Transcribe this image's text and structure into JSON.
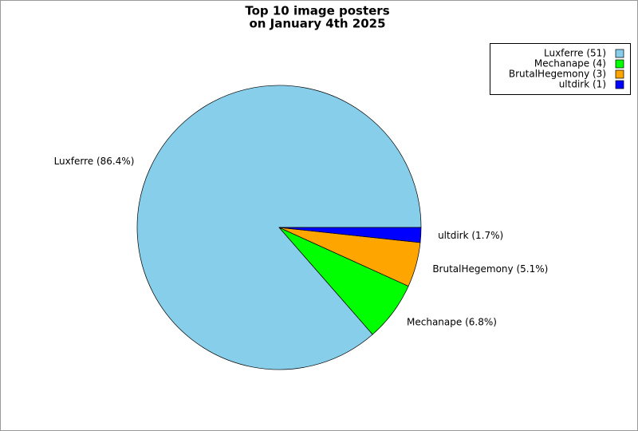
{
  "chart_data": {
    "type": "pie",
    "title": [
      "Top 10 image posters",
      "on January 4th 2025"
    ],
    "legend_labels": [
      "Luxferre (51)",
      "Mechanape (4)",
      "BrutalHegemony (3)",
      "ultdirk (1)"
    ],
    "values": [
      51,
      4,
      3,
      1
    ],
    "value_labels": [
      "Luxferre (86.4%)",
      "Mechanape (6.8%)",
      "BrutalHegemony (5.1%)",
      "ultdirk (1.7%)"
    ],
    "colors": [
      "#87ceeb",
      "#00ff00",
      "#ffa500",
      "#0000ff"
    ],
    "legend": "upper right"
  }
}
